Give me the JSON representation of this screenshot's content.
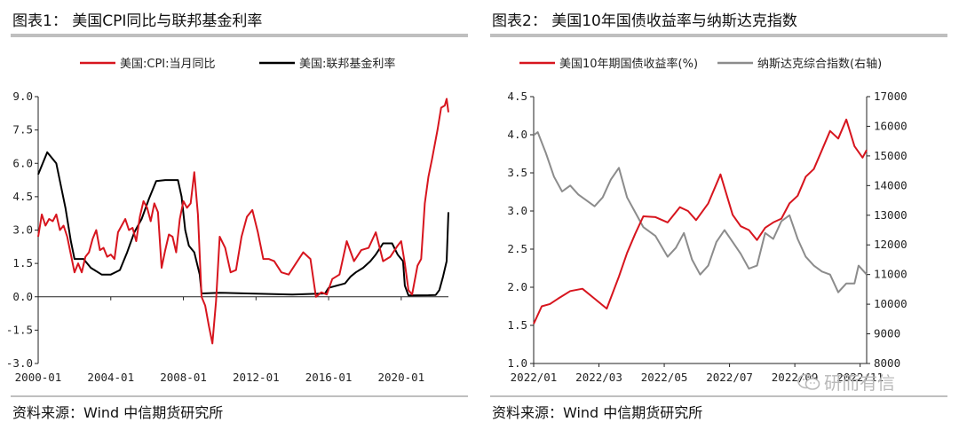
{
  "left": {
    "title": "图表1： 美国CPI同比与联邦基金利率",
    "source": "资料来源：Wind 中信期货研究所"
  },
  "right": {
    "title": "图表2： 美国10年国债收益率与纳斯达克指数",
    "source": "资料来源：Wind 中信期货研究所",
    "watermark": "研而有信"
  },
  "colors": {
    "red": "#d7151e",
    "black": "#000000",
    "gray": "#8c8c8c",
    "rule": "#bfbfbf"
  },
  "chart_data": [
    {
      "type": "line",
      "title": "",
      "x_tick_labels": [
        "2000-01",
        "2004-01",
        "2008-01",
        "2012-01",
        "2016-01",
        "2020-01"
      ],
      "x_range": [
        2000.0,
        2022.6
      ],
      "y_ticks": [
        "9.0",
        "7.5",
        "6.0",
        "4.5",
        "3.0",
        "1.5",
        "0.0",
        "-1.5",
        "-3.0"
      ],
      "ylim": [
        -3.0,
        9.0
      ],
      "legend_position": "top",
      "series": [
        {
          "name": "美国:CPI:当月同比",
          "color": "#d7151e",
          "x": [
            2000.0,
            2000.2,
            2000.4,
            2000.6,
            2000.8,
            2001.0,
            2001.2,
            2001.4,
            2001.6,
            2001.8,
            2002.0,
            2002.2,
            2002.4,
            2002.6,
            2002.8,
            2003.0,
            2003.2,
            2003.4,
            2003.6,
            2003.8,
            2004.0,
            2004.2,
            2004.4,
            2004.6,
            2004.8,
            2005.0,
            2005.2,
            2005.4,
            2005.6,
            2005.8,
            2006.0,
            2006.2,
            2006.4,
            2006.6,
            2006.8,
            2007.0,
            2007.2,
            2007.4,
            2007.6,
            2007.8,
            2008.0,
            2008.2,
            2008.4,
            2008.6,
            2008.8,
            2009.0,
            2009.2,
            2009.4,
            2009.6,
            2009.8,
            2010.0,
            2010.3,
            2010.6,
            2010.9,
            2011.2,
            2011.5,
            2011.8,
            2012.1,
            2012.4,
            2012.7,
            2013.0,
            2013.4,
            2013.8,
            2014.2,
            2014.6,
            2015.0,
            2015.3,
            2015.6,
            2015.9,
            2016.2,
            2016.6,
            2017.0,
            2017.4,
            2017.8,
            2018.2,
            2018.6,
            2019.0,
            2019.4,
            2019.8,
            2020.0,
            2020.2,
            2020.4,
            2020.6,
            2020.9,
            2021.1,
            2021.3,
            2021.5,
            2021.7,
            2022.0,
            2022.2,
            2022.4,
            2022.5,
            2022.6
          ],
          "values": [
            2.7,
            3.7,
            3.2,
            3.5,
            3.4,
            3.7,
            3.0,
            3.2,
            2.7,
            1.9,
            1.1,
            1.5,
            1.1,
            1.8,
            2.0,
            2.6,
            3.0,
            2.1,
            2.2,
            1.8,
            1.9,
            1.7,
            2.9,
            3.2,
            3.5,
            3.0,
            3.1,
            2.5,
            3.6,
            4.3,
            4.0,
            3.4,
            4.2,
            3.8,
            1.3,
            2.1,
            2.8,
            2.7,
            2.0,
            3.5,
            4.3,
            4.0,
            4.2,
            5.6,
            3.7,
            0.0,
            -0.4,
            -1.3,
            -2.1,
            -0.2,
            2.7,
            2.2,
            1.1,
            1.2,
            2.7,
            3.6,
            3.9,
            2.9,
            1.7,
            1.7,
            1.6,
            1.1,
            1.0,
            1.5,
            2.0,
            1.7,
            0.0,
            0.2,
            0.1,
            0.8,
            1.0,
            2.5,
            1.6,
            2.1,
            2.2,
            2.9,
            1.6,
            1.8,
            2.3,
            2.5,
            1.5,
            0.3,
            0.1,
            1.4,
            1.7,
            4.2,
            5.4,
            6.2,
            7.5,
            8.5,
            8.6,
            8.9,
            8.3
          ]
        },
        {
          "name": "美国:联邦基金利率",
          "color": "#000000",
          "x": [
            2000.0,
            2000.5,
            2001.0,
            2001.5,
            2001.8,
            2002.0,
            2002.5,
            2002.9,
            2003.1,
            2003.5,
            2004.0,
            2004.5,
            2004.9,
            2005.3,
            2005.7,
            2006.1,
            2006.5,
            2007.0,
            2007.7,
            2007.9,
            2008.1,
            2008.3,
            2008.6,
            2008.9,
            2009.0,
            2010.0,
            2012.0,
            2014.0,
            2015.8,
            2016.0,
            2016.9,
            2017.2,
            2017.5,
            2017.9,
            2018.3,
            2018.6,
            2019.0,
            2019.5,
            2019.8,
            2020.1,
            2020.2,
            2020.4,
            2021.5,
            2021.9,
            2022.1,
            2022.3,
            2022.5,
            2022.6
          ],
          "values": [
            5.5,
            6.5,
            6.0,
            4.0,
            2.5,
            1.7,
            1.7,
            1.3,
            1.2,
            1.0,
            1.0,
            1.2,
            2.0,
            2.9,
            3.5,
            4.4,
            5.2,
            5.25,
            5.25,
            4.5,
            3.0,
            2.3,
            2.0,
            1.0,
            0.15,
            0.18,
            0.14,
            0.1,
            0.15,
            0.4,
            0.6,
            0.9,
            1.1,
            1.3,
            1.6,
            1.9,
            2.4,
            2.4,
            1.9,
            1.6,
            0.5,
            0.06,
            0.07,
            0.08,
            0.3,
            0.9,
            1.6,
            3.8
          ]
        }
      ]
    },
    {
      "type": "line",
      "title": "",
      "x_tick_labels": [
        "2022/01",
        "2022/03",
        "2022/05",
        "2022/07",
        "2022/09",
        "2022/11"
      ],
      "x_range": [
        2022.0,
        2022.82
      ],
      "y_ticks_left": [
        "4.5",
        "4.0",
        "3.5",
        "3.0",
        "2.5",
        "2.0",
        "1.5",
        "1.0"
      ],
      "ylim_left": [
        1.0,
        4.5
      ],
      "y_ticks_right": [
        "17000",
        "16000",
        "15000",
        "14000",
        "13000",
        "12000",
        "11000",
        "10000",
        "9000",
        "8000"
      ],
      "ylim_right": [
        8000,
        17000
      ],
      "legend_position": "top",
      "series": [
        {
          "name": "美国10年期国债收益率(%)",
          "axis": "left",
          "color": "#d7151e",
          "x": [
            2022.0,
            2022.02,
            2022.04,
            2022.06,
            2022.09,
            2022.12,
            2022.15,
            2022.18,
            2022.21,
            2022.23,
            2022.25,
            2022.27,
            2022.3,
            2022.33,
            2022.36,
            2022.38,
            2022.4,
            2022.43,
            2022.46,
            2022.49,
            2022.51,
            2022.53,
            2022.55,
            2022.57,
            2022.59,
            2022.61,
            2022.63,
            2022.65,
            2022.67,
            2022.69,
            2022.71,
            2022.73,
            2022.75,
            2022.77,
            2022.79,
            2022.81,
            2022.82
          ],
          "values": [
            1.52,
            1.75,
            1.78,
            1.85,
            1.95,
            1.98,
            1.85,
            1.72,
            2.14,
            2.45,
            2.7,
            2.93,
            2.92,
            2.85,
            3.05,
            3.0,
            2.88,
            3.1,
            3.48,
            2.95,
            2.8,
            2.75,
            2.62,
            2.78,
            2.85,
            2.9,
            3.1,
            3.2,
            3.45,
            3.55,
            3.8,
            4.05,
            3.95,
            4.2,
            3.85,
            3.7,
            3.8
          ]
        },
        {
          "name": "纳斯达克综合指数(右轴)",
          "axis": "right",
          "color": "#8c8c8c",
          "x": [
            2022.0,
            2022.01,
            2022.03,
            2022.05,
            2022.07,
            2022.09,
            2022.11,
            2022.13,
            2022.15,
            2022.17,
            2022.19,
            2022.21,
            2022.23,
            2022.25,
            2022.27,
            2022.3,
            2022.33,
            2022.35,
            2022.37,
            2022.39,
            2022.41,
            2022.43,
            2022.45,
            2022.47,
            2022.49,
            2022.51,
            2022.53,
            2022.55,
            2022.57,
            2022.59,
            2022.61,
            2022.63,
            2022.65,
            2022.67,
            2022.69,
            2022.71,
            2022.73,
            2022.75,
            2022.77,
            2022.79,
            2022.8,
            2022.82
          ],
          "values": [
            15700,
            15800,
            15100,
            14300,
            13800,
            14000,
            13700,
            13500,
            13300,
            13600,
            14200,
            14600,
            13600,
            13100,
            12600,
            12300,
            11600,
            11900,
            12400,
            11500,
            11000,
            11300,
            12100,
            12500,
            12100,
            11700,
            11200,
            11300,
            12400,
            12200,
            12800,
            13000,
            12200,
            11600,
            11300,
            11100,
            11000,
            10400,
            10700,
            10700,
            11300,
            11000
          ]
        }
      ]
    }
  ]
}
